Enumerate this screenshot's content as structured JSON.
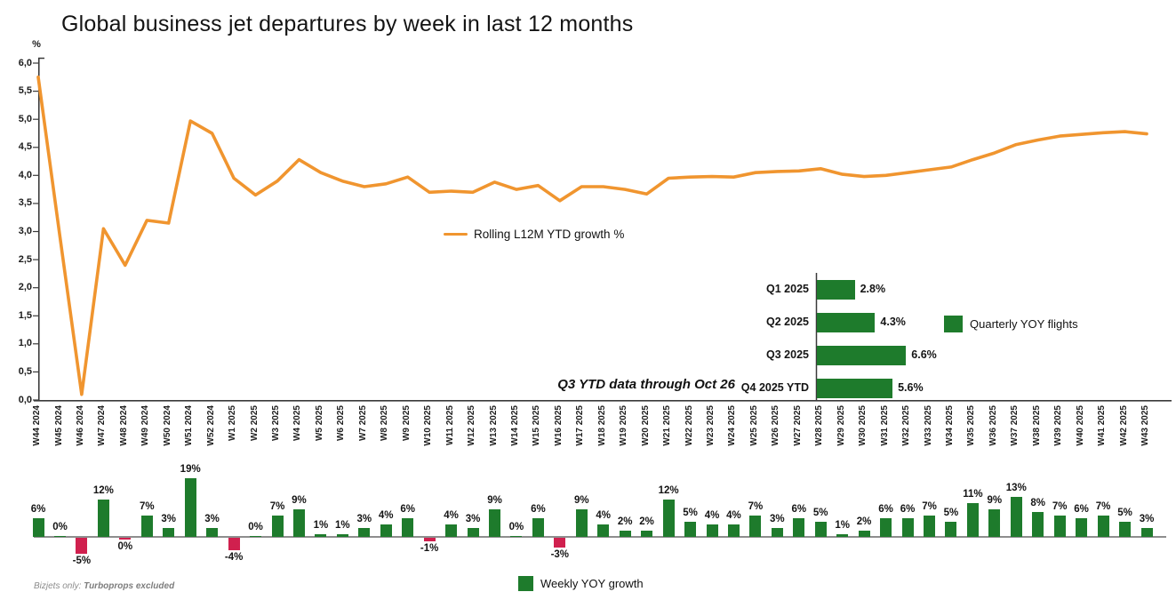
{
  "title": "Global business jet departures by week in last 12 months",
  "footnote": {
    "prefix": "Bizjets only: ",
    "bold": "Turboprops excluded"
  },
  "colors": {
    "orange": "#F0952F",
    "green": "#1E7B2C",
    "red": "#D0204E",
    "axis": "#3a3a3a"
  },
  "chart_data": [
    {
      "type": "line",
      "name": "rolling-l12m-ytd-growth",
      "legend": "Rolling L12M YTD growth %",
      "ylabel": "%",
      "ylim": [
        0,
        6
      ],
      "ytick_step": 0.5,
      "ytick_labels": [
        "6,0",
        "5,5",
        "5,0",
        "4,5",
        "4,0",
        "3,5",
        "3,0",
        "2,5",
        "2,0",
        "1,5",
        "1,0",
        "0,5",
        "0,0"
      ],
      "grid": false,
      "legend_position": "center-left-of-plot",
      "x": [
        "W44 2024",
        "W45 2024",
        "W46 2024",
        "W47 2024",
        "W48 2024",
        "W49 2024",
        "W50 2024",
        "W51 2024",
        "W52 2024",
        "W1 2025",
        "W2 2025",
        "W3 2025",
        "W4 2025",
        "W5 2025",
        "W6 2025",
        "W7 2025",
        "W8 2025",
        "W9 2025",
        "W10 2025",
        "W11 2025",
        "W12 2025",
        "W13 2025",
        "W14 2025",
        "W15 2025",
        "W16 2025",
        "W17 2025",
        "W18 2025",
        "W19 2025",
        "W20 2025",
        "W21 2025",
        "W22 2025",
        "W23 2025",
        "W24 2025",
        "W25 2025",
        "W26 2025",
        "W27 2025",
        "W28 2025",
        "W29 2025",
        "W30 2025",
        "W31 2025",
        "W32 2025",
        "W33 2025",
        "W34 2025",
        "W35 2025",
        "W36 2025",
        "W37 2025",
        "W38 2025",
        "W39 2025",
        "W40 2025",
        "W41 2025",
        "W42 2025",
        "W43 2025"
      ],
      "values": [
        5.75,
        2.9,
        0.1,
        3.05,
        2.4,
        3.2,
        3.15,
        4.97,
        4.75,
        3.95,
        3.65,
        3.9,
        4.28,
        4.05,
        3.9,
        3.8,
        3.85,
        3.97,
        3.7,
        3.72,
        3.7,
        3.88,
        3.75,
        3.82,
        3.55,
        3.8,
        3.8,
        3.75,
        3.67,
        3.95,
        3.97,
        3.98,
        3.97,
        4.05,
        4.07,
        4.08,
        4.12,
        4.02,
        3.98,
        4.0,
        4.05,
        4.1,
        4.15,
        4.28,
        4.4,
        4.55,
        4.63,
        4.7,
        4.73,
        4.76,
        4.78,
        4.74
      ]
    },
    {
      "type": "bar",
      "name": "weekly-yoy-growth",
      "legend": "Weekly YOY growth",
      "unit": "%",
      "categories": [
        "W44 2024",
        "W45 2024",
        "W46 2024",
        "W47 2024",
        "W48 2024",
        "W49 2024",
        "W50 2024",
        "W51 2024",
        "W52 2024",
        "W1 2025",
        "W2 2025",
        "W3 2025",
        "W4 2025",
        "W5 2025",
        "W6 2025",
        "W7 2025",
        "W8 2025",
        "W9 2025",
        "W10 2025",
        "W11 2025",
        "W12 2025",
        "W13 2025",
        "W14 2025",
        "W15 2025",
        "W16 2025",
        "W17 2025",
        "W18 2025",
        "W19 2025",
        "W20 2025",
        "W21 2025",
        "W22 2025",
        "W23 2025",
        "W24 2025",
        "W25 2025",
        "W26 2025",
        "W27 2025",
        "W28 2025",
        "W29 2025",
        "W30 2025",
        "W31 2025",
        "W32 2025",
        "W33 2025",
        "W34 2025",
        "W35 2025",
        "W36 2025",
        "W37 2025",
        "W38 2025",
        "W39 2025",
        "W40 2025",
        "W41 2025",
        "W42 2025",
        "W43 2025"
      ],
      "values": [
        6,
        0,
        -5,
        12,
        0,
        7,
        3,
        19,
        3,
        -4,
        0,
        7,
        9,
        1,
        1,
        3,
        4,
        6,
        -1,
        4,
        3,
        9,
        0,
        6,
        -3,
        9,
        4,
        2,
        2,
        12,
        5,
        4,
        4,
        7,
        3,
        6,
        5,
        1,
        2,
        6,
        6,
        7,
        5,
        11,
        9,
        13,
        8,
        7,
        6,
        7,
        5,
        3
      ],
      "zero_label_below_indices": [
        4
      ],
      "negative_color_note": "negative bars drawn red, positive bars green"
    },
    {
      "type": "bar",
      "name": "quarterly-yoy-flights",
      "legend": "Quarterly YOY flights",
      "orientation": "horizontal",
      "categories": [
        "Q1 2025",
        "Q2 2025",
        "Q3 2025",
        "Q4 2025 YTD"
      ],
      "values": [
        2.8,
        4.3,
        6.6,
        5.6
      ],
      "labels": [
        "2.8%",
        "4.3%",
        "6.6%",
        "5.6%"
      ],
      "note": "Q3 YTD data through Oct 26"
    }
  ]
}
